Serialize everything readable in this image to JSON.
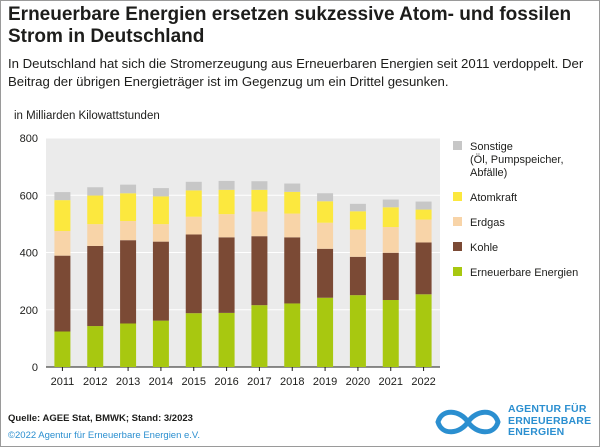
{
  "title": "Erneuerbare Energien ersetzen sukzessive Atom- und fossilen Strom in Deutschland",
  "subtitle": "In Deutschland hat sich die Stromerzeugung aus Erneuerbaren Energien seit 2011 verdoppelt. Der Beitrag der übrigen Energieträger ist im Gegenzug um ein Drittel gesunken.",
  "source": "Quelle: AGEE Stat, BMWK; Stand: 3/2023",
  "copyright": "©2022 Agentur für Erneuerbare Energien e.V.",
  "logo": {
    "line1": "AGENTUR FÜR",
    "line2": "ERNEUERBARE",
    "line3": "ENERGIEN"
  },
  "colors": {
    "erneuerbare": "#a8c810",
    "kohle": "#7b4a35",
    "erdgas": "#f8d4a8",
    "atomkraft": "#fce83e",
    "sonstige": "#c7c7c7",
    "panel": "#ebebeb",
    "brand": "#2b8fd0"
  },
  "chart_data": {
    "type": "bar",
    "stacked": true,
    "ylabel": "in Milliarden Kilowattstunden",
    "ylim": [
      0,
      800
    ],
    "yticks": [
      0,
      200,
      400,
      600,
      800
    ],
    "grid": true,
    "legend_position": "right",
    "categories": [
      "2011",
      "2012",
      "2013",
      "2014",
      "2015",
      "2016",
      "2017",
      "2018",
      "2019",
      "2020",
      "2021",
      "2022"
    ],
    "series": [
      {
        "name": "Erneuerbare Energien",
        "color_key": "erneuerbare",
        "values": [
          124,
          143,
          152,
          162,
          188,
          189,
          216,
          222,
          242,
          251,
          234,
          254
        ]
      },
      {
        "name": "Kohle",
        "color_key": "kohle",
        "values": [
          265,
          280,
          291,
          276,
          275,
          264,
          241,
          231,
          171,
          134,
          165,
          181
        ]
      },
      {
        "name": "Erdgas",
        "color_key": "erdgas",
        "values": [
          86,
          76,
          67,
          61,
          62,
          81,
          86,
          83,
          91,
          95,
          90,
          80
        ]
      },
      {
        "name": "Atomkraft",
        "color_key": "atomkraft",
        "values": [
          108,
          100,
          97,
          97,
          92,
          85,
          76,
          76,
          75,
          64,
          69,
          35
        ]
      },
      {
        "name": "Sonstige (Öl, Pumpspeicher, Abfälle)",
        "color_key": "sonstige",
        "values": [
          28,
          29,
          30,
          29,
          30,
          31,
          30,
          29,
          28,
          26,
          27,
          28
        ]
      }
    ]
  }
}
